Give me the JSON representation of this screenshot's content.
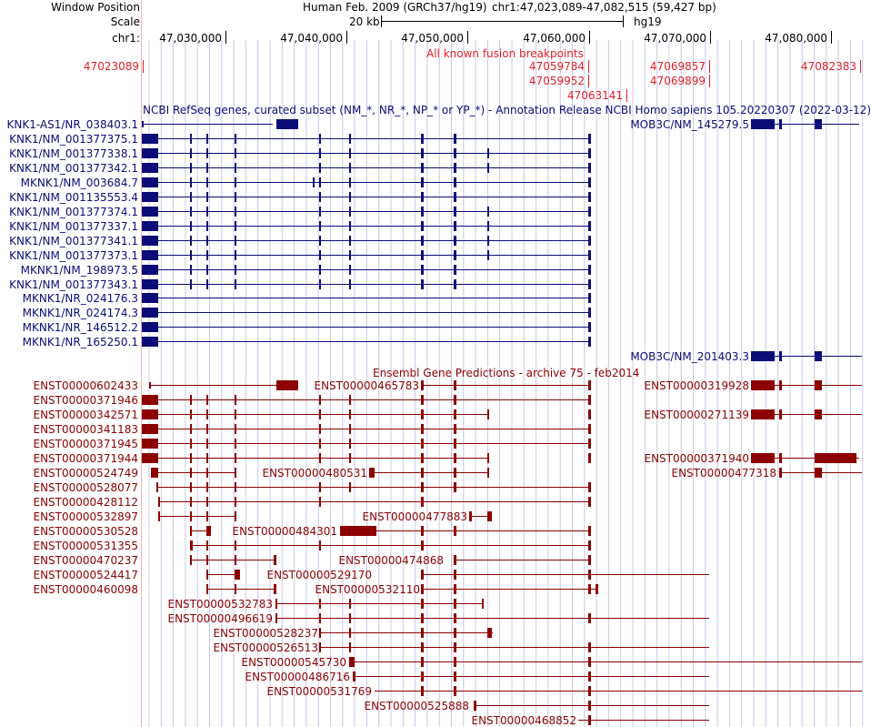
{
  "header": {
    "window_position_label": "Window Position",
    "scale_label": "Scale",
    "chr_label": "chr1:",
    "assembly": "Human Feb. 2009 (GRCh37/hg19)",
    "position": "chr1:47,023,089-47,082,515 (59,427 bp)",
    "scale_text": "20 kb",
    "db": "hg19",
    "ruler": [
      "47,030,000",
      "47,040,000",
      "47,050,000",
      "47,060,000",
      "47,070,000",
      "47,080,000"
    ]
  },
  "fusion": {
    "title": "All known fusion breakpoints",
    "breakpoints": [
      "47023089",
      "47059784",
      "47059952",
      "47063141",
      "47069857",
      "47069899",
      "47082383"
    ]
  },
  "refseq": {
    "title": "NCBI RefSeq genes, curated subset (NM_*, NR_*, NP_* or YP_*) - Annotation Release NCBI Homo sapiens 105.20220307 (2022-03-12)",
    "rows": [
      "KNK1-AS1/NR_038403.1",
      "KNK1/NM_001377375.1",
      "KNK1/NM_001377338.1",
      "KNK1/NM_001377342.1",
      "MKNK1/NM_003684.7",
      "KNK1/NM_001135553.4",
      "KNK1/NM_001377374.1",
      "KNK1/NM_001377337.1",
      "KNK1/NM_001377341.1",
      "KNK1/NM_001377373.1",
      "MKNK1/NM_198973.5",
      "KNK1/NM_001377343.1",
      "MKNK1/NR_024176.3",
      "MKNK1/NR_024174.3",
      "MKNK1/NR_146512.2",
      "MKNK1/NR_165250.1"
    ],
    "mob3c": [
      "MOB3C/NM_145279.5",
      "MOB3C/NM_201403.3"
    ]
  },
  "ensembl": {
    "title": "Ensembl Gene Predictions - archive 75 - feb2014",
    "left_labels": [
      "ENST00000602433",
      "ENST00000371946",
      "ENST00000342571",
      "ENST00000341183",
      "ENST00000371945",
      "ENST00000371944",
      "ENST00000524749",
      "ENST00000528077",
      "ENST00000428112",
      "ENST00000532897",
      "ENST00000530528",
      "ENST00000531355",
      "ENST00000470237",
      "ENST00000524417",
      "ENST00000460098"
    ],
    "inline_labels": [
      "ENST00000465783",
      "ENST00000319928",
      "ENST00000271139",
      "ENST00000371940",
      "ENST00000480531",
      "ENST00000477318",
      "ENST00000477883",
      "ENST00000484301",
      "ENST00000474868",
      "ENST00000529170",
      "ENST00000532110",
      "ENST00000532783",
      "ENST00000496619",
      "ENST00000528237",
      "ENST00000526513",
      "ENST00000545730",
      "ENST00000486716",
      "ENST00000531769",
      "ENST00000525888",
      "ENST00000468852"
    ]
  },
  "colors": {
    "navy": "#0c0c78",
    "ensembl": "#8c0000",
    "fusion": "#e0202a",
    "grid": "#c8c8e6"
  }
}
